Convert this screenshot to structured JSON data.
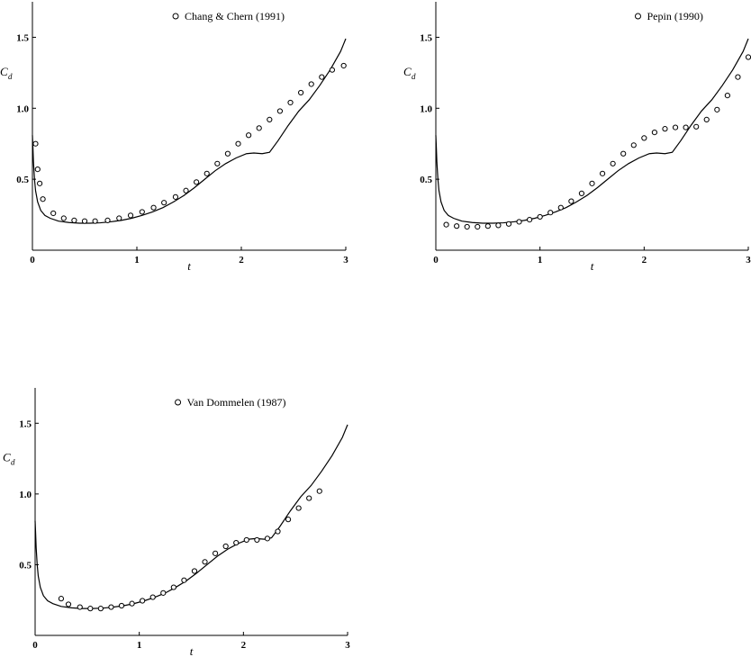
{
  "chart_data": [
    {
      "type": "scatter",
      "title": "",
      "xlabel": "t",
      "ylabel_main": "C",
      "ylabel_sub": "d",
      "xlim": [
        0,
        3
      ],
      "ylim": [
        0,
        1.75
      ],
      "xticks": [
        "0",
        "1",
        "2",
        "3"
      ],
      "yticks": [
        "0.5",
        "1.0",
        "1.5"
      ],
      "grid": false,
      "legend_position": "top-center",
      "legend": "Chang & Chern (1991)",
      "line_series": {
        "x": [
          0.0,
          0.005,
          0.01,
          0.02,
          0.03,
          0.05,
          0.08,
          0.12,
          0.17,
          0.25,
          0.35,
          0.45,
          0.55,
          0.65,
          0.75,
          0.85,
          0.95,
          1.05,
          1.15,
          1.25,
          1.35,
          1.45,
          1.55,
          1.65,
          1.75,
          1.85,
          1.95,
          2.05,
          2.12,
          2.2,
          2.27,
          2.35,
          2.45,
          2.55,
          2.65,
          2.75,
          2.85,
          2.95,
          3.0
        ],
        "y": [
          0.81,
          0.72,
          0.62,
          0.5,
          0.42,
          0.34,
          0.28,
          0.245,
          0.225,
          0.205,
          0.195,
          0.19,
          0.19,
          0.193,
          0.2,
          0.21,
          0.225,
          0.245,
          0.27,
          0.3,
          0.34,
          0.385,
          0.44,
          0.5,
          0.56,
          0.61,
          0.65,
          0.68,
          0.685,
          0.68,
          0.69,
          0.77,
          0.88,
          0.98,
          1.06,
          1.16,
          1.27,
          1.4,
          1.49
        ]
      },
      "scatter_series": {
        "name": "Chang & Chern (1991)",
        "x": [
          0.03,
          0.05,
          0.07,
          0.1,
          0.2,
          0.3,
          0.4,
          0.5,
          0.6,
          0.72,
          0.83,
          0.94,
          1.05,
          1.16,
          1.26,
          1.37,
          1.47,
          1.57,
          1.67,
          1.77,
          1.87,
          1.97,
          2.07,
          2.17,
          2.27,
          2.37,
          2.47,
          2.57,
          2.67,
          2.77,
          2.87,
          2.98
        ],
        "y": [
          0.75,
          0.57,
          0.47,
          0.36,
          0.26,
          0.225,
          0.21,
          0.205,
          0.205,
          0.21,
          0.225,
          0.245,
          0.27,
          0.3,
          0.335,
          0.375,
          0.42,
          0.48,
          0.54,
          0.61,
          0.68,
          0.75,
          0.81,
          0.86,
          0.92,
          0.98,
          1.04,
          1.11,
          1.17,
          1.22,
          1.27,
          1.3
        ]
      }
    },
    {
      "type": "scatter",
      "title": "",
      "xlabel": "t",
      "ylabel_main": "C",
      "ylabel_sub": "d",
      "xlim": [
        0,
        3
      ],
      "ylim": [
        0,
        1.75
      ],
      "xticks": [
        "0",
        "1",
        "2",
        "3"
      ],
      "yticks": [
        "0.5",
        "1.0",
        "1.5"
      ],
      "grid": false,
      "legend_position": "top-right",
      "legend": "Pepin (1990)",
      "line_series": {
        "x": [
          0.0,
          0.005,
          0.01,
          0.02,
          0.03,
          0.05,
          0.08,
          0.12,
          0.17,
          0.25,
          0.35,
          0.45,
          0.55,
          0.65,
          0.75,
          0.85,
          0.95,
          1.05,
          1.15,
          1.25,
          1.35,
          1.45,
          1.55,
          1.65,
          1.75,
          1.85,
          1.95,
          2.05,
          2.12,
          2.2,
          2.27,
          2.35,
          2.45,
          2.55,
          2.65,
          2.75,
          2.85,
          2.95,
          3.0
        ],
        "y": [
          0.81,
          0.72,
          0.62,
          0.5,
          0.42,
          0.34,
          0.28,
          0.245,
          0.225,
          0.205,
          0.195,
          0.19,
          0.19,
          0.193,
          0.2,
          0.21,
          0.225,
          0.245,
          0.27,
          0.3,
          0.34,
          0.385,
          0.44,
          0.5,
          0.56,
          0.61,
          0.65,
          0.68,
          0.685,
          0.68,
          0.69,
          0.77,
          0.88,
          0.98,
          1.06,
          1.16,
          1.27,
          1.4,
          1.49
        ]
      },
      "scatter_series": {
        "name": "Pepin (1990)",
        "x": [
          0.1,
          0.2,
          0.3,
          0.4,
          0.5,
          0.6,
          0.7,
          0.8,
          0.9,
          1.0,
          1.1,
          1.2,
          1.3,
          1.4,
          1.5,
          1.6,
          1.7,
          1.8,
          1.9,
          2.0,
          2.1,
          2.2,
          2.3,
          2.4,
          2.5,
          2.6,
          2.7,
          2.8,
          2.9,
          3.0
        ],
        "y": [
          0.18,
          0.17,
          0.165,
          0.165,
          0.17,
          0.175,
          0.185,
          0.2,
          0.215,
          0.235,
          0.265,
          0.3,
          0.345,
          0.4,
          0.47,
          0.54,
          0.61,
          0.68,
          0.74,
          0.79,
          0.83,
          0.855,
          0.865,
          0.865,
          0.87,
          0.92,
          0.99,
          1.09,
          1.22,
          1.36
        ]
      }
    },
    {
      "type": "scatter",
      "title": "",
      "xlabel": "t",
      "ylabel_main": "C",
      "ylabel_sub": "d",
      "xlim": [
        0,
        3
      ],
      "ylim": [
        0,
        1.75
      ],
      "xticks": [
        "0",
        "1",
        "2",
        "3"
      ],
      "yticks": [
        "0.5",
        "1.0",
        "1.5"
      ],
      "grid": false,
      "legend_position": "top-center",
      "legend": "Van Dommelen (1987)",
      "line_series": {
        "x": [
          0.0,
          0.005,
          0.01,
          0.02,
          0.03,
          0.05,
          0.08,
          0.12,
          0.17,
          0.25,
          0.35,
          0.45,
          0.55,
          0.65,
          0.75,
          0.85,
          0.95,
          1.05,
          1.15,
          1.25,
          1.35,
          1.45,
          1.55,
          1.65,
          1.75,
          1.85,
          1.95,
          2.05,
          2.12,
          2.2,
          2.27,
          2.35,
          2.45,
          2.55,
          2.65,
          2.75,
          2.85,
          2.95,
          3.0
        ],
        "y": [
          0.81,
          0.72,
          0.62,
          0.5,
          0.42,
          0.34,
          0.28,
          0.245,
          0.225,
          0.205,
          0.195,
          0.19,
          0.19,
          0.193,
          0.2,
          0.21,
          0.225,
          0.245,
          0.27,
          0.3,
          0.34,
          0.385,
          0.44,
          0.5,
          0.56,
          0.61,
          0.65,
          0.68,
          0.685,
          0.68,
          0.69,
          0.77,
          0.88,
          0.98,
          1.06,
          1.16,
          1.27,
          1.4,
          1.49
        ]
      },
      "scatter_series": {
        "name": "Van Dommelen (1987)",
        "x": [
          0.25,
          0.32,
          0.43,
          0.53,
          0.63,
          0.73,
          0.83,
          0.93,
          1.03,
          1.13,
          1.23,
          1.33,
          1.43,
          1.53,
          1.63,
          1.73,
          1.83,
          1.93,
          2.03,
          2.13,
          2.23,
          2.33,
          2.43,
          2.53,
          2.63,
          2.73
        ],
        "y": [
          0.26,
          0.22,
          0.2,
          0.19,
          0.19,
          0.2,
          0.21,
          0.225,
          0.245,
          0.27,
          0.3,
          0.34,
          0.39,
          0.455,
          0.52,
          0.58,
          0.63,
          0.655,
          0.675,
          0.675,
          0.685,
          0.735,
          0.82,
          0.9,
          0.97,
          1.02
        ]
      }
    }
  ]
}
